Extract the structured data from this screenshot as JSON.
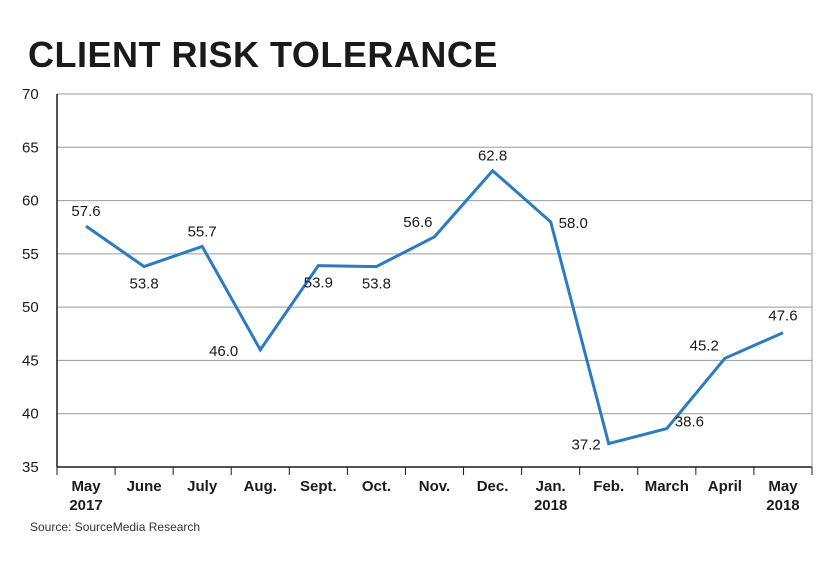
{
  "chart_data": {
    "type": "line",
    "title": "CLIENT RISK TOLERANCE",
    "source": "Source: SourceMedia Research",
    "xlabel": "",
    "ylabel": "",
    "ylim": [
      35,
      70
    ],
    "yticks": [
      35,
      40,
      45,
      50,
      55,
      60,
      65,
      70
    ],
    "grid": true,
    "categories": [
      {
        "line1": "May",
        "line2": "2017"
      },
      {
        "line1": "June",
        "line2": ""
      },
      {
        "line1": "July",
        "line2": ""
      },
      {
        "line1": "Aug.",
        "line2": ""
      },
      {
        "line1": "Sept.",
        "line2": ""
      },
      {
        "line1": "Oct.",
        "line2": ""
      },
      {
        "line1": "Nov.",
        "line2": ""
      },
      {
        "line1": "Dec.",
        "line2": ""
      },
      {
        "line1": "Jan.",
        "line2": "2018"
      },
      {
        "line1": "Feb.",
        "line2": ""
      },
      {
        "line1": "March",
        "line2": ""
      },
      {
        "line1": "April",
        "line2": ""
      },
      {
        "line1": "May",
        "line2": "2018"
      }
    ],
    "series": [
      {
        "name": "Client risk tolerance",
        "color": "#2b7bc0",
        "values": [
          57.6,
          53.8,
          55.7,
          46.0,
          53.9,
          53.8,
          56.6,
          62.8,
          58.0,
          37.2,
          38.6,
          45.2,
          47.6
        ],
        "labels": [
          "57.6",
          "53.8",
          "55.7",
          "46.0",
          "53.9",
          "53.8",
          "56.6",
          "62.8",
          "58.0",
          "37.2",
          "38.6",
          "45.2",
          "47.6"
        ]
      }
    ]
  }
}
